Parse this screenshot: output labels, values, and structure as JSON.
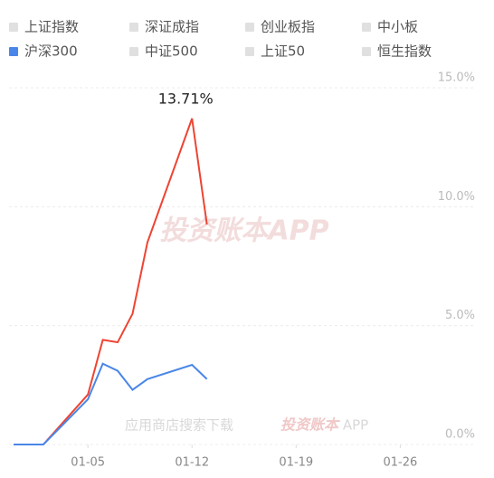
{
  "chart_data": {
    "type": "line",
    "legend": [
      {
        "name": "上证指数",
        "color": "#e0e0e0"
      },
      {
        "name": "深证成指",
        "color": "#e0e0e0"
      },
      {
        "name": "创业板指",
        "color": "#e0e0e0"
      },
      {
        "name": "中小板",
        "color": "#e0e0e0"
      },
      {
        "name": "沪深300",
        "color": "#4a86e8"
      },
      {
        "name": "中证500",
        "color": "#e0e0e0"
      },
      {
        "name": "上证50",
        "color": "#e0e0e0"
      },
      {
        "name": "恒生指数",
        "color": "#e0e0e0"
      }
    ],
    "x": [
      0,
      2,
      5,
      6,
      7,
      8,
      9,
      12,
      13
    ],
    "series": [
      {
        "color": "#ee4433",
        "values": [
          0,
          0,
          2.1,
          4.4,
          4.3,
          5.5,
          8.5,
          13.71,
          9.25
        ],
        "value_labels": [
          null,
          null,
          null,
          null,
          null,
          null,
          null,
          "13.71%",
          null
        ]
      },
      {
        "color": "#4a86e8",
        "values": [
          0,
          0,
          1.9,
          3.4,
          3.1,
          2.3,
          2.75,
          3.35,
          2.75
        ]
      }
    ],
    "xlim": [
      0,
      32
    ],
    "xticks": [
      {
        "value": 5,
        "label": "01-05"
      },
      {
        "value": 12,
        "label": "01-12"
      },
      {
        "value": 19,
        "label": "01-19"
      },
      {
        "value": 26,
        "label": "01-26"
      }
    ],
    "ylim": [
      0,
      15
    ],
    "yticks": [
      {
        "value": 0,
        "label": "0.0%"
      },
      {
        "value": 5,
        "label": "5.0%"
      },
      {
        "value": 10,
        "label": "10.0%"
      },
      {
        "value": 15,
        "label": "15.0%"
      }
    ],
    "grid": true,
    "watermark": "投资账本APP",
    "footer_watermark": [
      "应用商店搜索下载",
      "投资账本",
      "APP"
    ]
  }
}
